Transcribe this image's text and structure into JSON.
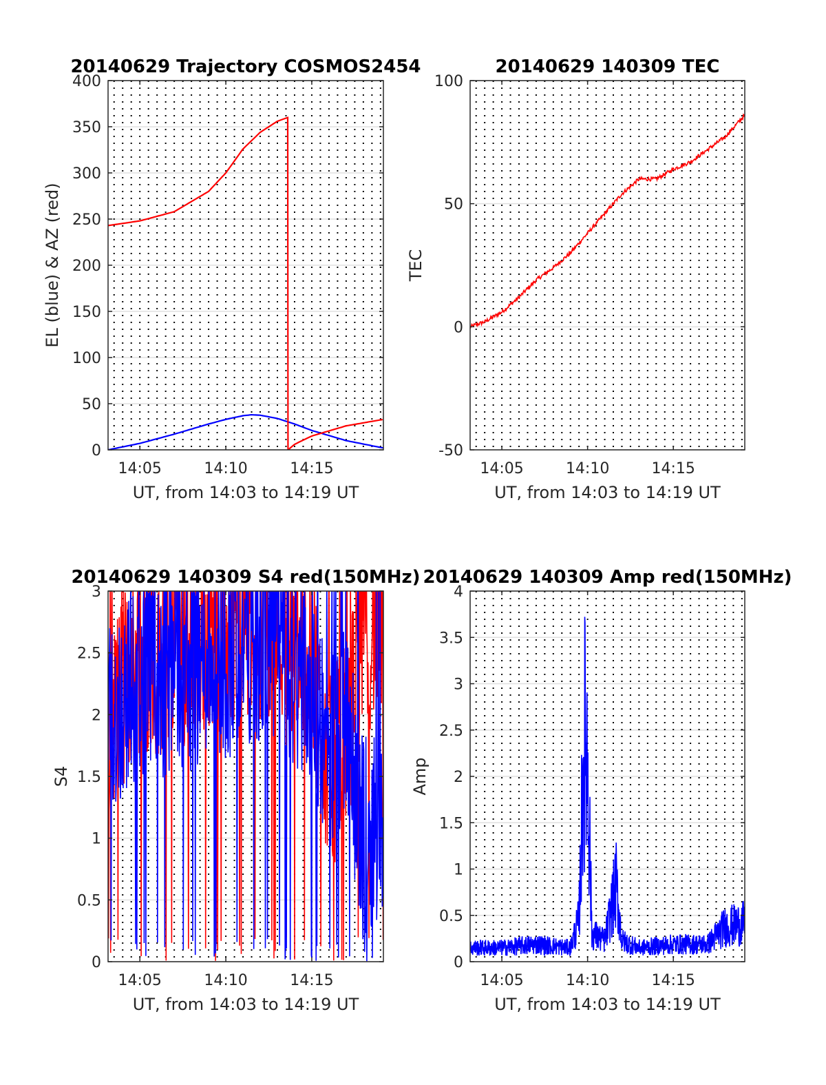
{
  "chart_data": [
    {
      "type": "line",
      "title": "20140629 Trajectory COSMOS2454",
      "xlabel": "UT, from 14:03 to 14:19 UT",
      "ylabel": "EL (blue) & AZ (red)",
      "xlim": [
        "14:03:09",
        "14:19:10"
      ],
      "ylim": [
        0,
        400
      ],
      "x_ticks": [
        "14:05",
        "14:10",
        "14:15"
      ],
      "y_ticks": [
        "0",
        "50",
        "100",
        "150",
        "200",
        "250",
        "300",
        "350",
        "400"
      ],
      "grid": true,
      "colors": {
        "EL": "#0000ff",
        "AZ": "#ff0000"
      },
      "x": [
        "14:03:09",
        "14:05:00",
        "14:07:00",
        "14:09:00",
        "14:10:00",
        "14:11:00",
        "14:11:30",
        "14:12:00",
        "14:13:00",
        "14:14:00",
        "14:15:00",
        "14:17:00",
        "14:19:10"
      ],
      "series": [
        {
          "key": "EL",
          "values": [
            0,
            7,
            17,
            28,
            33,
            37,
            38,
            37.5,
            34,
            28,
            21,
            10,
            2
          ]
        }
      ],
      "az_points": [
        {
          "x": "14:03:09",
          "y": 243
        },
        {
          "x": "14:05:00",
          "y": 248
        },
        {
          "x": "14:07:00",
          "y": 258
        },
        {
          "x": "14:09:00",
          "y": 280
        },
        {
          "x": "14:10:00",
          "y": 300
        },
        {
          "x": "14:11:00",
          "y": 326
        },
        {
          "x": "14:12:00",
          "y": 344
        },
        {
          "x": "14:13:00",
          "y": 356
        },
        {
          "x": "14:13:36",
          "y": 360
        },
        {
          "x": "14:13:37",
          "y": 0
        },
        {
          "x": "14:14:00",
          "y": 6
        },
        {
          "x": "14:15:00",
          "y": 15
        },
        {
          "x": "14:17:00",
          "y": 26
        },
        {
          "x": "14:19:10",
          "y": 33
        }
      ]
    },
    {
      "type": "line",
      "title": "20140629 140309 TEC",
      "xlabel": "UT, from 14:03 to 14:19 UT",
      "ylabel": "TEC",
      "xlim": [
        "14:03:09",
        "14:19:10"
      ],
      "ylim": [
        -50,
        100
      ],
      "x_ticks": [
        "14:05",
        "14:10",
        "14:15"
      ],
      "y_ticks": [
        "-50",
        "0",
        "50",
        "100"
      ],
      "grid": true,
      "colors": {
        "TEC": "#ff0000"
      },
      "x": [
        "14:03:09",
        "14:04:00",
        "14:05:00",
        "14:06:00",
        "14:07:00",
        "14:08:00",
        "14:09:00",
        "14:10:00",
        "14:11:00",
        "14:12:00",
        "14:13:00",
        "14:14:00",
        "14:15:00",
        "14:16:00",
        "14:17:00",
        "14:18:00",
        "14:19:10"
      ],
      "series": [
        {
          "key": "TEC",
          "values": [
            0,
            2,
            6,
            12,
            19,
            24,
            30,
            38,
            46,
            54,
            60,
            60,
            64,
            67,
            72,
            77,
            86
          ]
        }
      ]
    },
    {
      "type": "line",
      "title": "20140629 140309 S4 red(150MHz)",
      "xlabel": "UT, from 14:03 to 14:19 UT",
      "ylabel": "S4",
      "xlim": [
        "14:03:09",
        "14:19:10"
      ],
      "ylim": [
        0,
        3
      ],
      "x_ticks": [
        "14:05",
        "14:10",
        "14:15"
      ],
      "y_ticks": [
        "0",
        "0.5",
        "1",
        "1.5",
        "2",
        "2.5",
        "3"
      ],
      "grid": true,
      "colors": {
        "red": "#ff0000",
        "blue": "#0000ff"
      },
      "x": [
        "14:03:09",
        "14:04:00",
        "14:05:00",
        "14:06:00",
        "14:07:00",
        "14:08:00",
        "14:09:00",
        "14:10:00",
        "14:11:00",
        "14:12:00",
        "14:13:00",
        "14:14:00",
        "14:15:00",
        "14:16:00",
        "14:17:00",
        "14:18:00",
        "14:19:10"
      ],
      "series": [
        {
          "key": "red",
          "values": [
            2.0,
            2.2,
            2.5,
            2.4,
            2.6,
            2.5,
            2.7,
            2.6,
            2.8,
            2.7,
            2.8,
            2.6,
            2.5,
            1.5,
            1.8,
            2.6,
            2.8
          ]
        },
        {
          "key": "blue",
          "values": [
            1.9,
            2.1,
            2.3,
            2.2,
            2.4,
            2.3,
            2.5,
            2.4,
            2.6,
            2.5,
            2.6,
            2.3,
            2.2,
            1.7,
            1.9,
            1.0,
            1.2
          ]
        }
      ]
    },
    {
      "type": "line",
      "title": "20140629 140309 Amp red(150MHz)",
      "xlabel": "UT, from 14:03 to 14:19 UT",
      "ylabel": "Amp",
      "xlim": [
        "14:03:09",
        "14:19:10"
      ],
      "ylim": [
        0,
        4
      ],
      "x_ticks": [
        "14:05",
        "14:10",
        "14:15"
      ],
      "y_ticks": [
        "0",
        "0.5",
        "1",
        "1.5",
        "2",
        "2.5",
        "3",
        "3.5",
        "4"
      ],
      "grid": true,
      "colors": {
        "amp": "#0000ff"
      },
      "x": [
        "14:03:09",
        "14:05:00",
        "14:07:00",
        "14:09:00",
        "14:09:30",
        "14:09:48",
        "14:10:00",
        "14:10:15",
        "14:11:00",
        "14:11:40",
        "14:12:00",
        "14:13:00",
        "14:15:00",
        "14:17:00",
        "14:18:00",
        "14:19:10"
      ],
      "series": [
        {
          "key": "amp",
          "values": [
            0.2,
            0.2,
            0.25,
            0.2,
            0.6,
            3.2,
            3.0,
            0.4,
            0.3,
            1.1,
            0.3,
            0.2,
            0.25,
            0.25,
            0.5,
            0.55
          ]
        }
      ]
    }
  ]
}
